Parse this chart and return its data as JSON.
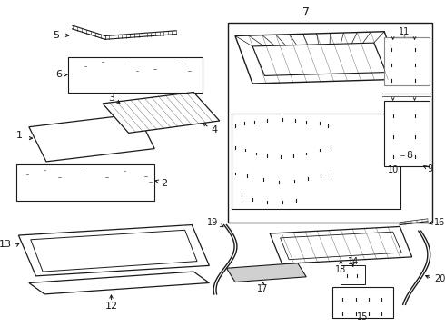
{
  "bg_color": "#ffffff",
  "line_color": "#1a1a1a",
  "gray_color": "#888888",
  "fig_w": 4.9,
  "fig_h": 3.6,
  "dpi": 100
}
